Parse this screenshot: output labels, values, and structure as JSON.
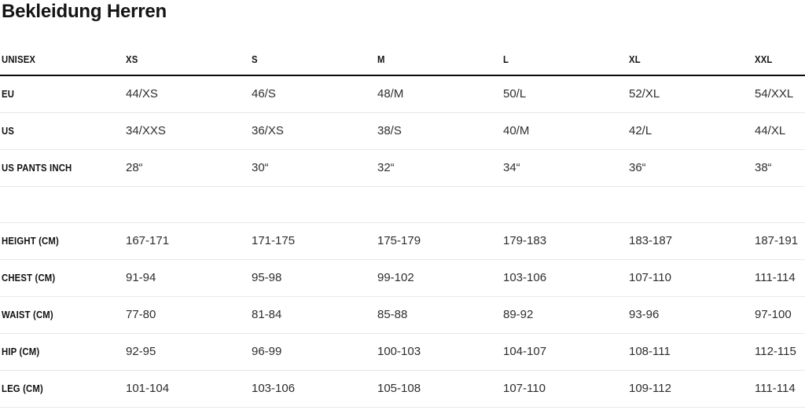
{
  "page": {
    "title": "Bekleidung Herren"
  },
  "table": {
    "header": {
      "label": "UNISEX",
      "columns": [
        "XS",
        "S",
        "M",
        "L",
        "XL",
        "XXL"
      ]
    },
    "rows": [
      {
        "label": "EU",
        "values": [
          "44/XS",
          "46/S",
          "48/M",
          "50/L",
          "52/XL",
          "54/XXL"
        ]
      },
      {
        "label": "US",
        "values": [
          "34/XXS",
          "36/XS",
          "38/S",
          "40/M",
          "42/L",
          "44/XL"
        ]
      },
      {
        "label": "US PANTS INCH",
        "values": [
          "28“",
          "30“",
          "32“",
          "34“",
          "36“",
          "38“"
        ]
      },
      {
        "label": "",
        "values": [
          "",
          "",
          "",
          "",
          "",
          ""
        ]
      },
      {
        "label": "HEIGHT (CM)",
        "values": [
          "167-171",
          "171-175",
          "175-179",
          "179-183",
          "183-187",
          "187-191"
        ]
      },
      {
        "label": "CHEST (CM)",
        "values": [
          "91-94",
          "95-98",
          "99-102",
          "103-106",
          "107-110",
          "111-114"
        ]
      },
      {
        "label": "WAIST (CM)",
        "values": [
          "77-80",
          "81-84",
          "85-88",
          "89-92",
          "93-96",
          "97-100"
        ]
      },
      {
        "label": "HIP (CM)",
        "values": [
          "92-95",
          "96-99",
          "100-103",
          "104-107",
          "108-111",
          "112-115"
        ]
      },
      {
        "label": "LEG (CM)",
        "values": [
          "101-104",
          "103-106",
          "105-108",
          "107-110",
          "109-112",
          "111-114"
        ]
      }
    ]
  },
  "colors": {
    "background": "#ffffff",
    "heading_text": "#141414",
    "label_text": "#111111",
    "data_text": "#2d2d2d",
    "header_rule": "#0a0a0a",
    "row_rule": "#e8e8e8"
  }
}
